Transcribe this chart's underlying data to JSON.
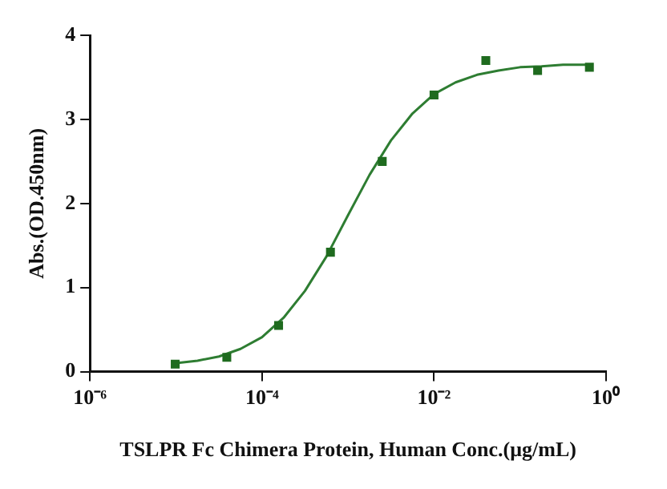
{
  "chart_data": {
    "type": "scatter",
    "xlabel": "TSLPR Fc Chimera Protein, Human Conc.(μg/mL)",
    "ylabel": "Abs.(OD.450nm)",
    "log": "x",
    "xlim": [
      1e-06,
      1
    ],
    "xticks": [
      {
        "value": 1e-06,
        "label": "10⁻⁶"
      },
      {
        "value": 0.0001,
        "label": "10⁻⁴"
      },
      {
        "value": 0.01,
        "label": "10⁻²"
      },
      {
        "value": 1,
        "label": "10⁰"
      }
    ],
    "ylim": [
      0,
      4
    ],
    "yticks": [
      0,
      1,
      2,
      3,
      4
    ],
    "grid": false,
    "legend": false,
    "series": [
      {
        "marker": "square",
        "color": "#1f6b1f",
        "x": [
          9.8e-06,
          3.9e-05,
          0.000156,
          0.000625,
          0.0025,
          0.01,
          0.04,
          0.16,
          0.64
        ],
        "values": [
          0.09,
          0.17,
          0.55,
          1.42,
          2.5,
          3.29,
          3.7,
          3.58,
          3.62
        ]
      },
      {
        "type": "line",
        "marker": "none",
        "line_style": "solid",
        "color": "#2e7d32",
        "x": [
          1e-05,
          1.78e-05,
          3.16e-05,
          5.62e-05,
          0.0001,
          0.000178,
          0.000316,
          0.000562,
          0.001,
          0.00178,
          0.00316,
          0.00562,
          0.01,
          0.0178,
          0.0316,
          0.0562,
          0.1,
          0.178,
          0.316,
          0.562,
          0.64
        ],
        "values": [
          0.1,
          0.13,
          0.18,
          0.27,
          0.41,
          0.64,
          0.96,
          1.37,
          1.86,
          2.34,
          2.75,
          3.07,
          3.3,
          3.44,
          3.53,
          3.58,
          3.62,
          3.63,
          3.65,
          3.65,
          3.65
        ]
      }
    ]
  }
}
